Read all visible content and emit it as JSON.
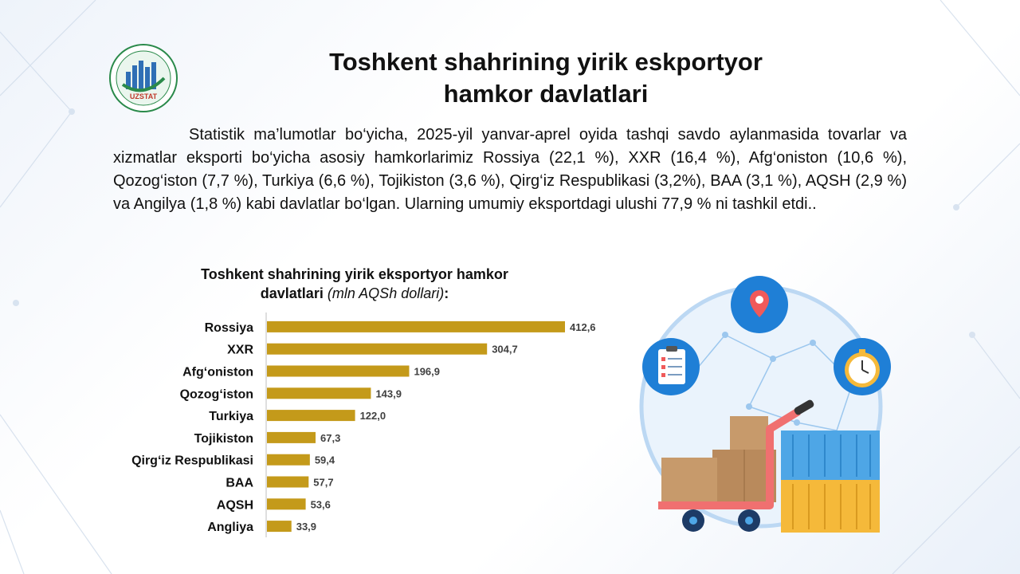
{
  "header": {
    "logo_text_top": "TOSHKENT SHAHAR",
    "logo_text_bottom": "STATISTIKA BOSHQARMASI",
    "logo_brand": "UZSTAT",
    "title_line1": "Toshkent shahrining yirik eskportyor",
    "title_line2": "hamkor davlatlari"
  },
  "body": {
    "paragraph": "Statistik ma’lumotlar bo‘yicha, 2025-yil yanvar-aprel oyida tashqi savdo aylanmasida tovarlar va xizmatlar eksporti bo‘yicha asosiy hamkorlarimiz Rossiya (22,1 %), XXR (16,4 %), Afg‘oniston (10,6 %), Qozog‘iston (7,7 %), Turkiya (6,6 %), Tojikiston (3,6 %), Qirg‘iz Respublikasi (3,2%), BAA (3,1 %), AQSH (2,9 %) va Angilya (1,8 %) kabi davlatlar bo‘lgan. Ularning umumiy eksportdagi ulushi 77,9 % ni tashkil etdi.."
  },
  "chart_data": {
    "type": "bar",
    "orientation": "horizontal",
    "title_line1": "Toshkent shahrining yirik eksportyor hamkor",
    "title_line2_bold": "davlatlari",
    "title_line2_note": "(mln AQSh dollari)",
    "title_line2_end": ":",
    "categories": [
      "Rossiya",
      "XXR",
      "Afg‘oniston",
      "Qozog‘iston",
      "Turkiya",
      "Tojikiston",
      "Qirg‘iz Respublikasi",
      "BAA",
      "AQSH",
      "Angliya"
    ],
    "values": [
      412.6,
      304.7,
      196.9,
      143.9,
      122.0,
      67.3,
      59.4,
      57.7,
      53.6,
      33.9
    ],
    "labels": [
      "412,6",
      "304,7",
      "196,9",
      "143,9",
      "122,0",
      "67,3",
      "59,4",
      "57,7",
      "53,6",
      "33,9"
    ],
    "xlim": [
      0,
      412.6
    ],
    "bar_color": "#c49a1a",
    "grid": false,
    "legend": "none"
  },
  "colors": {
    "accent": "#1f7fd6",
    "box": "#c79a6b",
    "container_blue": "#4ea6e6",
    "container_yellow": "#f5b93a",
    "trolley": "#f07070"
  },
  "icons": [
    "location-pin-icon",
    "clipboard-checklist-icon",
    "stopwatch-icon"
  ]
}
